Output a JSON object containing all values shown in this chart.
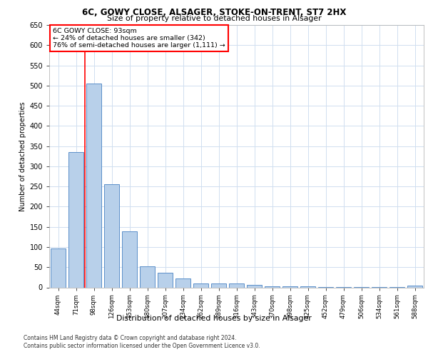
{
  "title1": "6C, GOWY CLOSE, ALSAGER, STOKE-ON-TRENT, ST7 2HX",
  "title2": "Size of property relative to detached houses in Alsager",
  "xlabel": "Distribution of detached houses by size in Alsager",
  "ylabel": "Number of detached properties",
  "categories": [
    "44sqm",
    "71sqm",
    "98sqm",
    "126sqm",
    "153sqm",
    "180sqm",
    "207sqm",
    "234sqm",
    "262sqm",
    "289sqm",
    "316sqm",
    "343sqm",
    "370sqm",
    "398sqm",
    "425sqm",
    "452sqm",
    "479sqm",
    "506sqm",
    "534sqm",
    "561sqm",
    "588sqm"
  ],
  "values": [
    97,
    335,
    505,
    255,
    138,
    53,
    37,
    22,
    10,
    10,
    10,
    6,
    2,
    2,
    2,
    1,
    1,
    1,
    1,
    1,
    5
  ],
  "bar_color": "#b8d0ea",
  "bar_edge_color": "#5b8fc9",
  "grid_color": "#d0dff0",
  "background_color": "#ffffff",
  "annotation_line1": "6C GOWY CLOSE: 93sqm",
  "annotation_line2": "← 24% of detached houses are smaller (342)",
  "annotation_line3": "76% of semi-detached houses are larger (1,111) →",
  "red_line_x": 1.5,
  "footer1": "Contains HM Land Registry data © Crown copyright and database right 2024.",
  "footer2": "Contains public sector information licensed under the Open Government Licence v3.0.",
  "ylim": [
    0,
    650
  ],
  "yticks": [
    0,
    50,
    100,
    150,
    200,
    250,
    300,
    350,
    400,
    450,
    500,
    550,
    600,
    650
  ]
}
